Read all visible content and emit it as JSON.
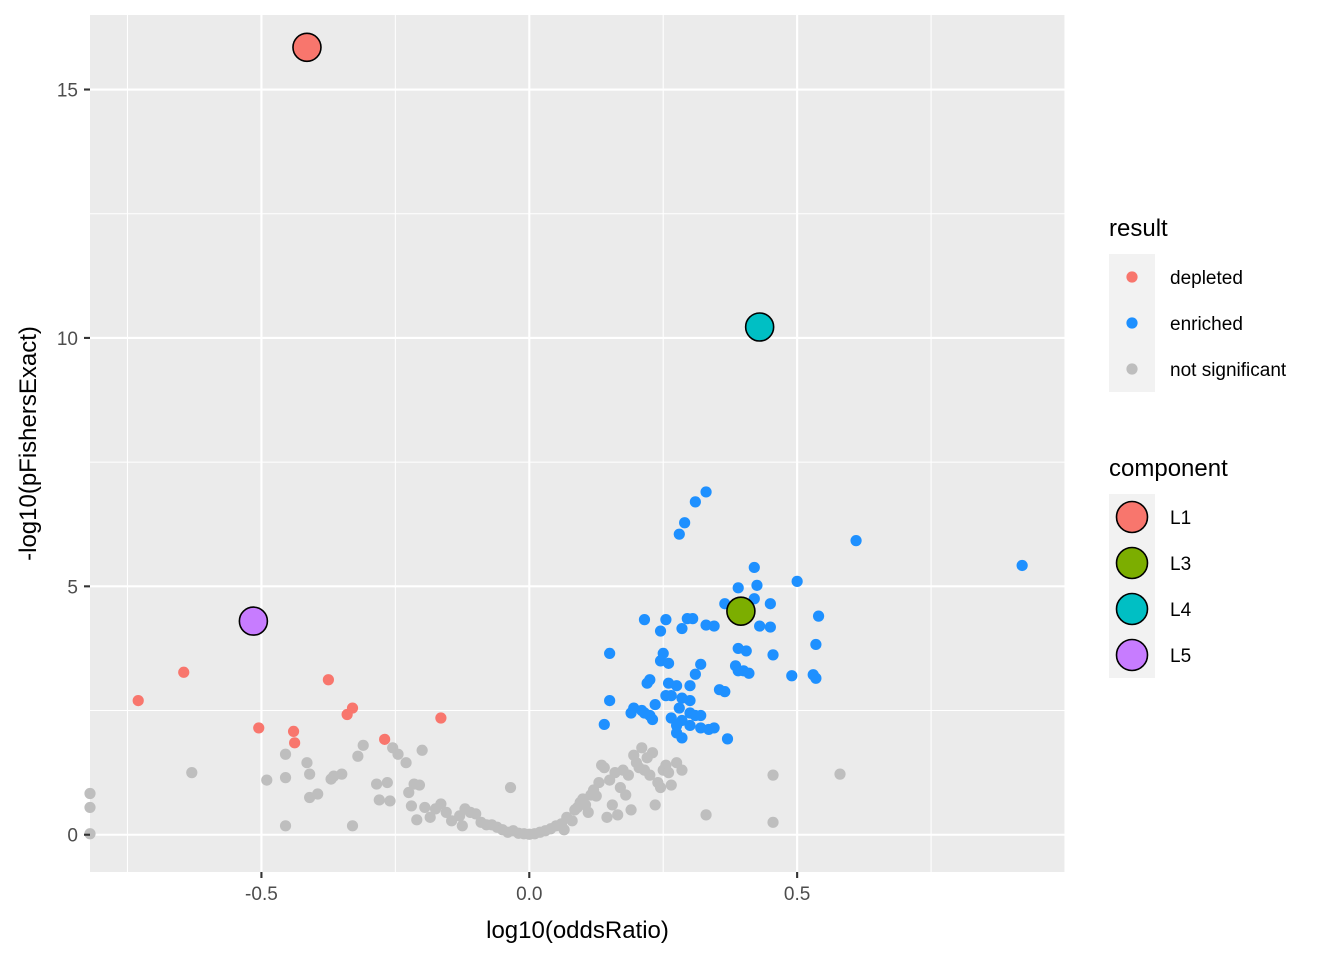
{
  "chart_data": {
    "type": "scatter",
    "xlabel": "log10(oddsRatio)",
    "ylabel": "-log10(pFishersExact)",
    "xlim": [
      -0.82,
      1.0
    ],
    "ylim": [
      -0.75,
      16.5
    ],
    "x_ticks": [
      -0.5,
      0.0,
      0.5
    ],
    "x_tick_labels": [
      "-0.5",
      "0.0",
      "0.5"
    ],
    "y_ticks": [
      0,
      5,
      10,
      15
    ],
    "y_tick_labels": [
      "0",
      "5",
      "10",
      "15"
    ],
    "grid": true,
    "panel_background": "#ebebeb",
    "legends": [
      {
        "title": "result",
        "position": "right",
        "entries": [
          {
            "label": "depleted",
            "color": "#F8766D"
          },
          {
            "label": "enriched",
            "color": "#1E90FF"
          },
          {
            "label": "not significant",
            "color": "#BEBEBE"
          }
        ]
      },
      {
        "title": "component",
        "position": "right",
        "entries": [
          {
            "label": "L1",
            "color": "#F8766D"
          },
          {
            "label": "L3",
            "color": "#7CAE00"
          },
          {
            "label": "L4",
            "color": "#00BFC4"
          },
          {
            "label": "L5",
            "color": "#C77CFF"
          }
        ]
      }
    ],
    "series": [
      {
        "name": "depleted",
        "color": "#F8766D",
        "points": [
          [
            -0.73,
            2.7
          ],
          [
            -0.645,
            3.27
          ],
          [
            -0.505,
            2.15
          ],
          [
            -0.44,
            2.08
          ],
          [
            -0.438,
            1.85
          ],
          [
            -0.375,
            3.12
          ],
          [
            -0.34,
            2.42
          ],
          [
            -0.33,
            2.55
          ],
          [
            -0.27,
            1.92
          ],
          [
            -0.165,
            2.35
          ]
        ]
      },
      {
        "name": "enriched",
        "color": "#1E90FF",
        "points": [
          [
            0.33,
            6.9
          ],
          [
            0.31,
            6.7
          ],
          [
            0.29,
            6.28
          ],
          [
            0.28,
            6.05
          ],
          [
            0.61,
            5.92
          ],
          [
            0.92,
            5.42
          ],
          [
            0.42,
            5.38
          ],
          [
            0.5,
            5.1
          ],
          [
            0.425,
            5.02
          ],
          [
            0.39,
            4.97
          ],
          [
            0.42,
            4.75
          ],
          [
            0.365,
            4.65
          ],
          [
            0.45,
            4.65
          ],
          [
            0.215,
            4.33
          ],
          [
            0.255,
            4.33
          ],
          [
            0.295,
            4.35
          ],
          [
            0.305,
            4.35
          ],
          [
            0.33,
            4.22
          ],
          [
            0.345,
            4.2
          ],
          [
            0.43,
            4.2
          ],
          [
            0.45,
            4.18
          ],
          [
            0.285,
            4.15
          ],
          [
            0.245,
            4.1
          ],
          [
            0.54,
            4.4
          ],
          [
            0.535,
            3.83
          ],
          [
            0.39,
            3.75
          ],
          [
            0.405,
            3.7
          ],
          [
            0.25,
            3.65
          ],
          [
            0.15,
            3.65
          ],
          [
            0.455,
            3.62
          ],
          [
            0.245,
            3.5
          ],
          [
            0.26,
            3.45
          ],
          [
            0.32,
            3.43
          ],
          [
            0.385,
            3.4
          ],
          [
            0.4,
            3.3
          ],
          [
            0.39,
            3.3
          ],
          [
            0.41,
            3.25
          ],
          [
            0.31,
            3.23
          ],
          [
            0.49,
            3.2
          ],
          [
            0.53,
            3.22
          ],
          [
            0.535,
            3.15
          ],
          [
            0.225,
            3.12
          ],
          [
            0.22,
            3.05
          ],
          [
            0.26,
            3.05
          ],
          [
            0.275,
            3.0
          ],
          [
            0.3,
            3.0
          ],
          [
            0.355,
            2.92
          ],
          [
            0.365,
            2.88
          ],
          [
            0.255,
            2.8
          ],
          [
            0.265,
            2.8
          ],
          [
            0.285,
            2.75
          ],
          [
            0.3,
            2.7
          ],
          [
            0.15,
            2.7
          ],
          [
            0.235,
            2.62
          ],
          [
            0.28,
            2.55
          ],
          [
            0.195,
            2.55
          ],
          [
            0.21,
            2.5
          ],
          [
            0.19,
            2.45
          ],
          [
            0.215,
            2.45
          ],
          [
            0.225,
            2.4
          ],
          [
            0.3,
            2.45
          ],
          [
            0.31,
            2.4
          ],
          [
            0.32,
            2.4
          ],
          [
            0.265,
            2.35
          ],
          [
            0.285,
            2.3
          ],
          [
            0.23,
            2.32
          ],
          [
            0.14,
            2.22
          ],
          [
            0.275,
            2.2
          ],
          [
            0.3,
            2.2
          ],
          [
            0.32,
            2.15
          ],
          [
            0.335,
            2.12
          ],
          [
            0.345,
            2.15
          ],
          [
            0.275,
            2.05
          ],
          [
            0.285,
            1.95
          ],
          [
            0.37,
            1.93
          ]
        ]
      },
      {
        "name": "not significant",
        "color": "#BEBEBE",
        "points": [
          [
            -0.82,
            0.83
          ],
          [
            -0.82,
            0.55
          ],
          [
            -0.82,
            0.02
          ],
          [
            -0.63,
            1.25
          ],
          [
            -0.49,
            1.1
          ],
          [
            -0.455,
            1.62
          ],
          [
            -0.455,
            1.15
          ],
          [
            -0.455,
            0.18
          ],
          [
            -0.415,
            1.45
          ],
          [
            -0.41,
            1.22
          ],
          [
            -0.41,
            0.75
          ],
          [
            -0.395,
            0.82
          ],
          [
            -0.37,
            1.12
          ],
          [
            -0.365,
            1.18
          ],
          [
            -0.35,
            1.22
          ],
          [
            -0.33,
            0.18
          ],
          [
            -0.32,
            1.58
          ],
          [
            -0.31,
            1.8
          ],
          [
            -0.285,
            1.02
          ],
          [
            -0.28,
            0.7
          ],
          [
            -0.265,
            1.05
          ],
          [
            -0.26,
            0.68
          ],
          [
            -0.255,
            1.75
          ],
          [
            -0.245,
            1.62
          ],
          [
            -0.23,
            1.45
          ],
          [
            -0.225,
            0.85
          ],
          [
            -0.22,
            0.58
          ],
          [
            -0.215,
            1.02
          ],
          [
            -0.21,
            0.3
          ],
          [
            -0.205,
            1.0
          ],
          [
            -0.2,
            1.7
          ],
          [
            -0.195,
            0.55
          ],
          [
            -0.185,
            0.35
          ],
          [
            -0.175,
            0.52
          ],
          [
            -0.165,
            0.62
          ],
          [
            -0.155,
            0.45
          ],
          [
            -0.145,
            0.28
          ],
          [
            -0.13,
            0.38
          ],
          [
            -0.125,
            0.18
          ],
          [
            -0.12,
            0.52
          ],
          [
            -0.11,
            0.45
          ],
          [
            -0.1,
            0.42
          ],
          [
            -0.09,
            0.25
          ],
          [
            -0.08,
            0.2
          ],
          [
            -0.07,
            0.2
          ],
          [
            -0.06,
            0.15
          ],
          [
            -0.05,
            0.1
          ],
          [
            -0.04,
            0.05
          ],
          [
            -0.035,
            0.95
          ],
          [
            -0.03,
            0.08
          ],
          [
            -0.02,
            0.03
          ],
          [
            -0.01,
            0.02
          ],
          [
            0.0,
            0.01
          ],
          [
            0.01,
            0.02
          ],
          [
            0.02,
            0.05
          ],
          [
            0.03,
            0.08
          ],
          [
            0.04,
            0.12
          ],
          [
            0.05,
            0.18
          ],
          [
            0.06,
            0.22
          ],
          [
            0.065,
            0.1
          ],
          [
            0.07,
            0.35
          ],
          [
            0.08,
            0.28
          ],
          [
            0.085,
            0.5
          ],
          [
            0.09,
            0.55
          ],
          [
            0.095,
            0.65
          ],
          [
            0.1,
            0.72
          ],
          [
            0.105,
            0.6
          ],
          [
            0.11,
            0.45
          ],
          [
            0.115,
            0.8
          ],
          [
            0.12,
            0.9
          ],
          [
            0.125,
            0.78
          ],
          [
            0.13,
            1.05
          ],
          [
            0.135,
            1.4
          ],
          [
            0.14,
            1.35
          ],
          [
            0.145,
            0.35
          ],
          [
            0.15,
            1.1
          ],
          [
            0.155,
            0.6
          ],
          [
            0.16,
            1.25
          ],
          [
            0.165,
            0.4
          ],
          [
            0.17,
            0.95
          ],
          [
            0.175,
            1.3
          ],
          [
            0.18,
            0.8
          ],
          [
            0.185,
            1.2
          ],
          [
            0.19,
            0.5
          ],
          [
            0.195,
            1.6
          ],
          [
            0.2,
            1.45
          ],
          [
            0.205,
            1.35
          ],
          [
            0.21,
            1.75
          ],
          [
            0.215,
            1.3
          ],
          [
            0.22,
            1.55
          ],
          [
            0.225,
            1.2
          ],
          [
            0.23,
            1.65
          ],
          [
            0.235,
            0.6
          ],
          [
            0.24,
            1.05
          ],
          [
            0.245,
            0.95
          ],
          [
            0.25,
            1.3
          ],
          [
            0.255,
            1.4
          ],
          [
            0.26,
            1.25
          ],
          [
            0.265,
            1.0
          ],
          [
            0.275,
            1.45
          ],
          [
            0.285,
            1.3
          ],
          [
            0.33,
            0.4
          ],
          [
            0.455,
            1.2
          ],
          [
            0.455,
            0.25
          ],
          [
            0.58,
            1.22
          ]
        ]
      }
    ],
    "highlighted": [
      {
        "label": "L1",
        "color": "#F8766D",
        "x": -0.415,
        "y": 15.85
      },
      {
        "label": "L3",
        "color": "#7CAE00",
        "x": 0.395,
        "y": 4.5
      },
      {
        "label": "L4",
        "color": "#00BFC4",
        "x": 0.43,
        "y": 10.22
      },
      {
        "label": "L5",
        "color": "#C77CFF",
        "x": -0.515,
        "y": 4.3
      }
    ]
  }
}
